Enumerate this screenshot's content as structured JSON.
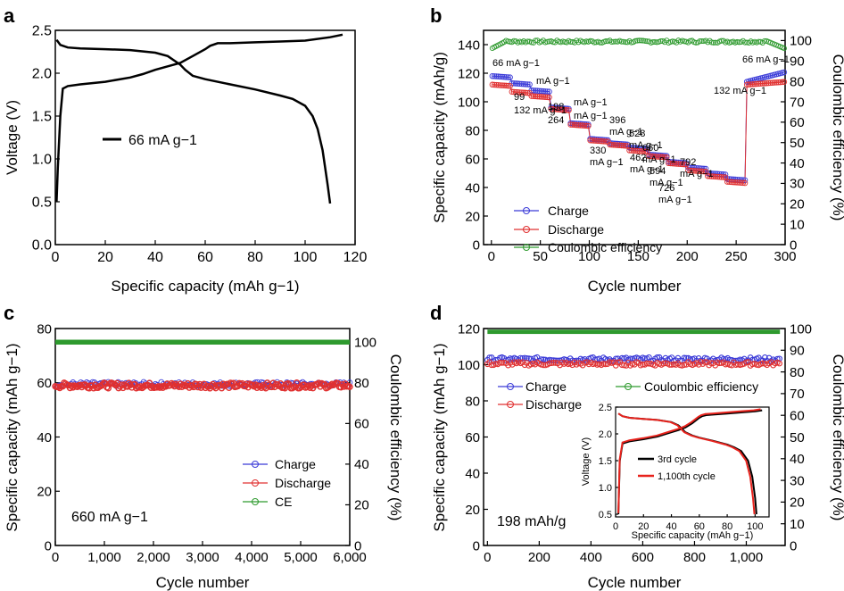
{
  "colors": {
    "charge": "#3b3bd8",
    "discharge": "#e03030",
    "ce": "#2e9a2e",
    "line": "#000000",
    "black": "#000000",
    "red": "#e8231d"
  },
  "chart_data": [
    {
      "panel": "a",
      "type": "line",
      "xlabel": "Specific capacity (mAh g−1)",
      "ylabel": "Voltage (V)",
      "xlim": [
        0,
        120
      ],
      "ylim": [
        0,
        2.5
      ],
      "xticks": [
        0,
        20,
        40,
        60,
        80,
        100,
        120
      ],
      "yticks": [
        0.0,
        0.5,
        1.0,
        1.5,
        2.0,
        2.5
      ],
      "legend": [
        "66 mA g−1"
      ],
      "series": [
        {
          "name": "discharge",
          "x": [
            0.5,
            1,
            2,
            5,
            10,
            20,
            30,
            40,
            45,
            50,
            52,
            55,
            60,
            70,
            80,
            90,
            95,
            100,
            103,
            105,
            107,
            108,
            109,
            110
          ],
          "y": [
            2.39,
            2.37,
            2.33,
            2.3,
            2.29,
            2.28,
            2.27,
            2.24,
            2.2,
            2.1,
            2.04,
            1.97,
            1.93,
            1.87,
            1.81,
            1.74,
            1.7,
            1.62,
            1.5,
            1.35,
            1.1,
            0.9,
            0.7,
            0.48
          ]
        },
        {
          "name": "charge",
          "x": [
            0.5,
            1,
            2,
            3,
            5,
            10,
            20,
            30,
            35,
            40,
            45,
            50,
            55,
            60,
            62,
            65,
            70,
            80,
            90,
            100,
            110,
            115
          ],
          "y": [
            0.5,
            0.9,
            1.5,
            1.82,
            1.85,
            1.87,
            1.9,
            1.95,
            1.99,
            2.04,
            2.08,
            2.12,
            2.2,
            2.28,
            2.32,
            2.35,
            2.35,
            2.36,
            2.37,
            2.38,
            2.42,
            2.45
          ]
        }
      ]
    },
    {
      "panel": "b",
      "type": "scatter",
      "xlabel": "Cycle number",
      "ylabel": "Specific capacity (mAh/g)",
      "ylabel_right": "Coulombic efficiency (%)",
      "xlim": [
        0,
        300
      ],
      "ylim": [
        0,
        150
      ],
      "ylim_right": [
        0,
        105
      ],
      "xticks": [
        0,
        50,
        100,
        150,
        200,
        250,
        300
      ],
      "yticks": [
        0,
        20,
        40,
        60,
        80,
        100,
        120,
        140
      ],
      "yticks_right": [
        0,
        10,
        20,
        30,
        40,
        50,
        60,
        70,
        80,
        90,
        100
      ],
      "legend": [
        "Charge",
        "Discharge",
        "Coulombic efficiency"
      ],
      "rate_steps": [
        {
          "start": 1,
          "end": 20,
          "charge": 118,
          "discharge": 112
        },
        {
          "start": 21,
          "end": 40,
          "charge": 113,
          "discharge": 107
        },
        {
          "start": 41,
          "end": 60,
          "charge": 108,
          "discharge": 104
        },
        {
          "start": 61,
          "end": 80,
          "charge": 96,
          "discharge": 95
        },
        {
          "start": 81,
          "end": 100,
          "charge": 85,
          "discharge": 84
        },
        {
          "start": 101,
          "end": 120,
          "charge": 74,
          "discharge": 73
        },
        {
          "start": 121,
          "end": 140,
          "charge": 71,
          "discharge": 70
        },
        {
          "start": 141,
          "end": 160,
          "charge": 68,
          "discharge": 66
        },
        {
          "start": 161,
          "end": 180,
          "charge": 63,
          "discharge": 62
        },
        {
          "start": 181,
          "end": 200,
          "charge": 58,
          "discharge": 57
        },
        {
          "start": 201,
          "end": 220,
          "charge": 54,
          "discharge": 52
        },
        {
          "start": 221,
          "end": 240,
          "charge": 50,
          "discharge": 48
        },
        {
          "start": 241,
          "end": 260,
          "charge": 46,
          "discharge": 44
        },
        {
          "start": 261,
          "end": 300,
          "charge": 118,
          "discharge": 115
        }
      ],
      "ce_range": [
        96,
        102
      ],
      "annotations": [
        "66 mA g−1",
        "99",
        "mA g−1",
        "132 mA g−1",
        "198",
        "mA g−1",
        "264",
        "mA g−1",
        "330",
        "mA g−1",
        "396",
        "mA g−1",
        "462",
        "mA g−1",
        "528",
        "mA g−1",
        "594",
        "mA g−1",
        "660",
        "mA g−1",
        "726",
        "mA g−1",
        "792",
        "mA g−1",
        "66 mA g−1",
        "132 mA g−1"
      ]
    },
    {
      "panel": "c",
      "type": "scatter",
      "xlabel": "Cycle number",
      "ylabel": "Specific capacity (mAh g−1)",
      "ylabel_right": "Coulombic efficiency (%)",
      "xlim": [
        0,
        6000
      ],
      "ylim": [
        0,
        80
      ],
      "ylim_right": [
        0,
        106.7
      ],
      "xticks": [
        "0",
        "1,000",
        "2,000",
        "3,000",
        "4,000",
        "5,000",
        "6,000"
      ],
      "yticks": [
        0,
        20,
        40,
        60,
        80
      ],
      "yticks_right": [
        0,
        20,
        40,
        60,
        80,
        100
      ],
      "legend": [
        "Charge",
        "Discharge",
        "CE"
      ],
      "charge_mean": 59.5,
      "discharge_mean": 59,
      "ce_mean": 100,
      "annotation": "660 mA g−1"
    },
    {
      "panel": "d",
      "type": "scatter",
      "xlabel": "Cycle number",
      "ylabel": "Specific capacity (mAh g−1)",
      "ylabel_right": "Coulombic efficiency (%)",
      "xlim": [
        0,
        1150
      ],
      "ylim": [
        0,
        120
      ],
      "ylim_right": [
        0,
        100
      ],
      "xticks": [
        "0",
        "200",
        "400",
        "600",
        "800",
        "1,000"
      ],
      "yticks": [
        0,
        20,
        40,
        60,
        80,
        100,
        120
      ],
      "yticks_right": [
        0,
        10,
        20,
        30,
        40,
        50,
        60,
        70,
        80,
        90,
        100
      ],
      "legend": [
        "Charge",
        "Discharge",
        "Coulombic efficiency"
      ],
      "charge_mean": 103,
      "discharge_mean": 100.5,
      "ce_mean": 98.5,
      "annotation": "198 mAh/g",
      "inset": {
        "xlabel": "Specific capacity (mAh g−1)",
        "ylabel": "Voltage (V)",
        "xlim": [
          0,
          110
        ],
        "ylim": [
          0.45,
          2.5
        ],
        "xticks": [
          0,
          20,
          40,
          60,
          80,
          100
        ],
        "yticks": [
          0.5,
          1.0,
          1.5,
          2.0,
          2.5
        ],
        "legend": [
          "3rd cycle",
          "1,100th cycle"
        ],
        "discharge": {
          "x": [
            2,
            5,
            10,
            20,
            30,
            40,
            45,
            50,
            55,
            60,
            70,
            80,
            85,
            90,
            95,
            98,
            100,
            101
          ],
          "y": [
            2.38,
            2.33,
            2.3,
            2.28,
            2.26,
            2.22,
            2.16,
            2.03,
            1.97,
            1.93,
            1.87,
            1.8,
            1.75,
            1.68,
            1.5,
            1.2,
            0.8,
            0.5
          ]
        },
        "charge": {
          "x": [
            2,
            3,
            5,
            10,
            20,
            30,
            40,
            45,
            50,
            55,
            60,
            62,
            65,
            70,
            80,
            90,
            100,
            105
          ],
          "y": [
            0.5,
            1.5,
            1.82,
            1.86,
            1.9,
            1.95,
            2.03,
            2.07,
            2.12,
            2.2,
            2.3,
            2.33,
            2.35,
            2.36,
            2.38,
            2.4,
            2.42,
            2.44
          ]
        }
      }
    }
  ],
  "panel_labels": [
    "a",
    "b",
    "c",
    "d"
  ]
}
